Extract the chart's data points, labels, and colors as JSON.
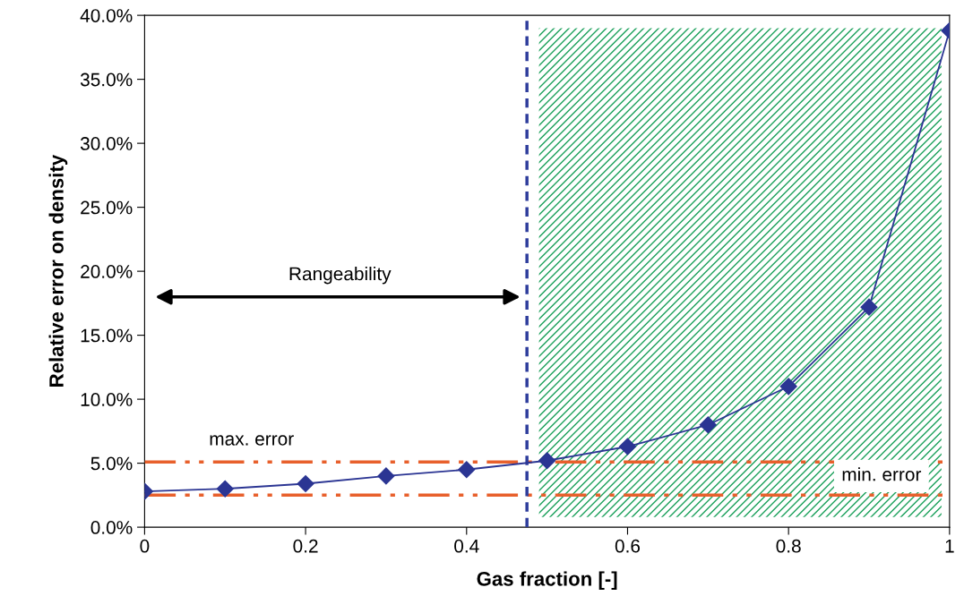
{
  "chart_data": {
    "type": "line",
    "xlabel": "Gas fraction [-]",
    "ylabel": "Relative error on density",
    "x": [
      0,
      0.1,
      0.2,
      0.3,
      0.4,
      0.5,
      0.6,
      0.7,
      0.8,
      0.9,
      1.0
    ],
    "series": [
      {
        "color": "#2b3593",
        "values": [
          2.8,
          3.0,
          3.4,
          4.0,
          4.5,
          5.2,
          6.3,
          8.0,
          11.0,
          17.2,
          38.8
        ]
      }
    ],
    "marker": "diamond",
    "line_style": "solid",
    "grid": false,
    "legend": false,
    "xlim": [
      0,
      1
    ],
    "ylim": [
      0,
      40
    ],
    "xticks": [
      0,
      0.2,
      0.4,
      0.6,
      0.8,
      1
    ],
    "yticks": [
      {
        "value": 0,
        "label": "0.0%"
      },
      {
        "value": 5,
        "label": "5.0%"
      },
      {
        "value": 10,
        "label": "10.0%"
      },
      {
        "value": 15,
        "label": "15.0%"
      },
      {
        "value": 20,
        "label": "20.0%"
      },
      {
        "value": 25,
        "label": "25.0%"
      },
      {
        "value": 30,
        "label": "30.0%"
      },
      {
        "value": 35,
        "label": "35.0%"
      },
      {
        "value": 40,
        "label": "40.0%"
      }
    ],
    "ref_lines": [
      {
        "axis": "y",
        "value": 5.1,
        "label": "max. error",
        "color": "#e8602c",
        "line_style": "dashdotdot"
      },
      {
        "axis": "y",
        "value": 2.5,
        "label": "min. error",
        "color": "#e8602c",
        "line_style": "dashdotdot"
      },
      {
        "axis": "x",
        "value": 0.475,
        "color": "#2e3d9c",
        "line_style": "dashed"
      }
    ],
    "bands": [
      {
        "axis": "x",
        "from": 0.49,
        "to": 0.99,
        "color": "#1aa05a"
      }
    ],
    "annotations": [
      "Rangeability"
    ]
  }
}
